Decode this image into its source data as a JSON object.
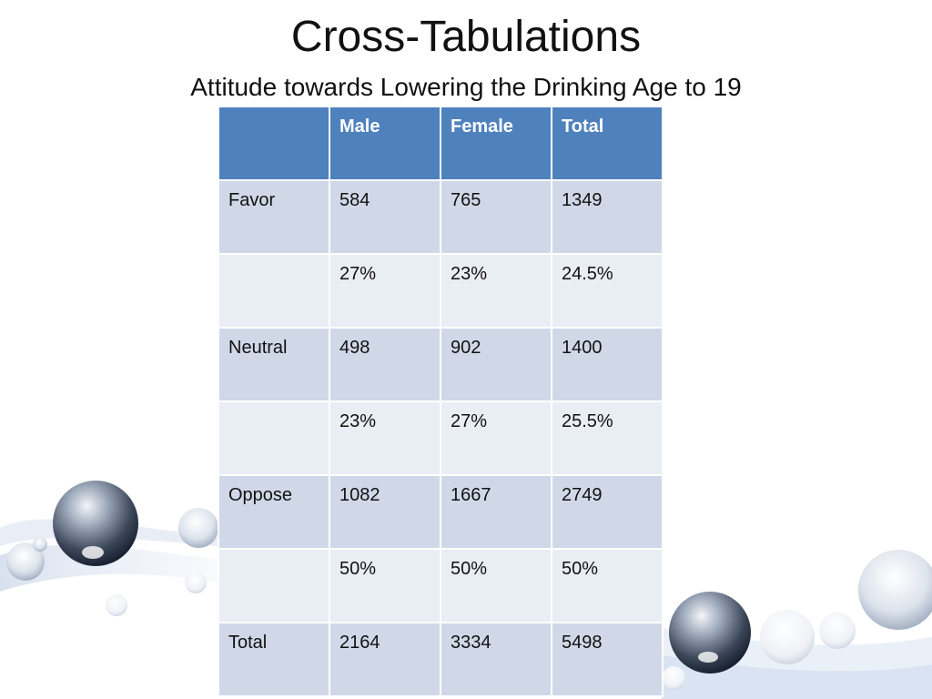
{
  "slide": {
    "title": "Cross-Tabulations",
    "subtitle": "Attitude towards Lowering the Drinking Age to 19"
  },
  "table": {
    "headers": [
      "",
      "Male",
      "Female",
      "Total"
    ],
    "rows": [
      [
        "Favor",
        "584",
        "765",
        "1349"
      ],
      [
        "",
        "27%",
        "23%",
        "24.5%"
      ],
      [
        "Neutral",
        "498",
        "902",
        "1400"
      ],
      [
        "",
        "23%",
        "27%",
        "25.5%"
      ],
      [
        "Oppose",
        "1082",
        "1667",
        "2749"
      ],
      [
        "",
        "50%",
        "50%",
        "50%"
      ],
      [
        "Total",
        "2164",
        "3334",
        "5498"
      ]
    ]
  },
  "colors": {
    "header_fill": "#4f81bd",
    "row_fill_dark": "#d0d8e8",
    "row_fill_light": "#e9edf4"
  }
}
